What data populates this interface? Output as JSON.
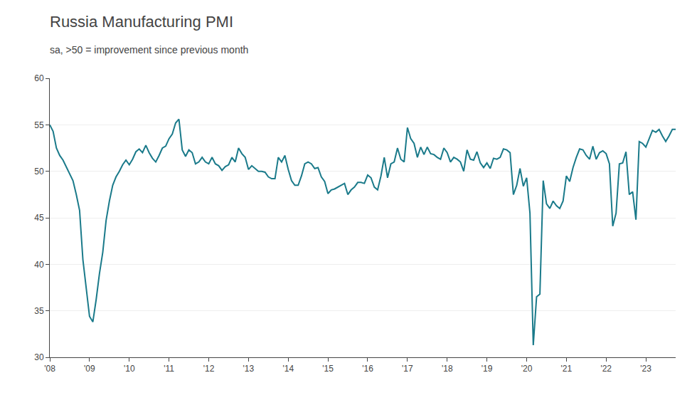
{
  "chart_data": {
    "type": "line",
    "title": "Russia Manufacturing PMI",
    "subtitle": "sa, >50 = improvement since previous month",
    "color": "#1a7a8a",
    "ylim": [
      30,
      60
    ],
    "yticks": [
      30,
      35,
      40,
      45,
      50,
      55,
      60
    ],
    "grid": true,
    "categories": [
      "'08",
      null,
      null,
      null,
      null,
      null,
      null,
      null,
      null,
      null,
      null,
      null,
      "'09",
      null,
      null,
      null,
      null,
      null,
      null,
      null,
      null,
      null,
      null,
      null,
      "'10",
      null,
      null,
      null,
      null,
      null,
      null,
      null,
      null,
      null,
      null,
      null,
      "'11",
      null,
      null,
      null,
      null,
      null,
      null,
      null,
      null,
      null,
      null,
      null,
      "'12",
      null,
      null,
      null,
      null,
      null,
      null,
      null,
      null,
      null,
      null,
      null,
      "'13",
      null,
      null,
      null,
      null,
      null,
      null,
      null,
      null,
      null,
      null,
      null,
      "'14",
      null,
      null,
      null,
      null,
      null,
      null,
      null,
      null,
      null,
      null,
      null,
      "'15",
      null,
      null,
      null,
      null,
      null,
      null,
      null,
      null,
      null,
      null,
      null,
      "'16",
      null,
      null,
      null,
      null,
      null,
      null,
      null,
      null,
      null,
      null,
      null,
      "'17",
      null,
      null,
      null,
      null,
      null,
      null,
      null,
      null,
      null,
      null,
      null,
      "'18",
      null,
      null,
      null,
      null,
      null,
      null,
      null,
      null,
      null,
      null,
      null,
      "'19",
      null,
      null,
      null,
      null,
      null,
      null,
      null,
      null,
      null,
      null,
      null,
      "'20",
      null,
      null,
      null,
      null,
      null,
      null,
      null,
      null,
      null,
      null,
      null,
      "'21",
      null,
      null,
      null,
      null,
      null,
      null,
      null,
      null,
      null,
      null,
      null,
      "'22",
      null,
      null,
      null,
      null,
      null,
      null,
      null,
      null,
      null,
      null,
      null,
      "'23",
      null,
      null,
      null,
      null,
      null,
      null,
      null,
      null,
      null
    ],
    "values": [
      55.0,
      54.3,
      52.5,
      51.7,
      51.2,
      50.5,
      49.8,
      49.0,
      47.5,
      45.8,
      40.5,
      37.5,
      34.4,
      33.8,
      36.2,
      39.0,
      41.3,
      44.7,
      46.8,
      48.5,
      49.4,
      50.0,
      50.7,
      51.2,
      50.7,
      51.3,
      52.1,
      52.4,
      52.0,
      52.8,
      52.0,
      51.4,
      51.0,
      51.7,
      52.5,
      52.7,
      53.5,
      54.0,
      55.2,
      55.6,
      52.3,
      51.6,
      52.3,
      52.0,
      50.8,
      51.0,
      51.5,
      51.0,
      50.8,
      51.5,
      50.8,
      50.6,
      50.1,
      50.5,
      50.7,
      51.5,
      51.0,
      52.5,
      51.9,
      51.5,
      50.2,
      50.6,
      50.3,
      50.0,
      50.0,
      49.9,
      49.4,
      49.2,
      49.2,
      51.5,
      51.0,
      51.7,
      50.2,
      49.0,
      48.5,
      48.5,
      49.5,
      50.8,
      51.0,
      50.8,
      50.3,
      50.4,
      49.4,
      48.9,
      47.6,
      48.0,
      48.1,
      48.3,
      48.5,
      48.7,
      47.5,
      48.0,
      48.3,
      48.8,
      48.8,
      48.7,
      49.6,
      49.3,
      48.3,
      48.0,
      49.5,
      51.5,
      49.3,
      50.8,
      51.0,
      52.5,
      51.3,
      51.0,
      54.7,
      53.5,
      53.0,
      51.5,
      52.6,
      51.8,
      52.6,
      51.9,
      51.8,
      51.5,
      51.3,
      52.5,
      52.0,
      51.0,
      51.5,
      51.3,
      51.0,
      50.0,
      52.3,
      51.3,
      51.2,
      52.1,
      50.9,
      50.4,
      50.9,
      50.3,
      51.4,
      51.3,
      51.5,
      52.4,
      52.3,
      52.0,
      47.5,
      48.5,
      50.3,
      48.4,
      49.3,
      45.5,
      31.3,
      36.5,
      36.8,
      49.0,
      46.5,
      46.0,
      46.8,
      46.3,
      46.0,
      46.8,
      49.5,
      48.9,
      50.4,
      51.5,
      52.4,
      52.3,
      51.7,
      51.3,
      52.7,
      51.3,
      52.0,
      52.2,
      51.9,
      50.8,
      44.1,
      45.5,
      50.8,
      50.9,
      52.1,
      47.5,
      47.8,
      44.8,
      53.2,
      53.0,
      52.6,
      53.5,
      54.4,
      54.2,
      54.5,
      53.8,
      53.2,
      53.8,
      54.5,
      54.5
    ]
  }
}
